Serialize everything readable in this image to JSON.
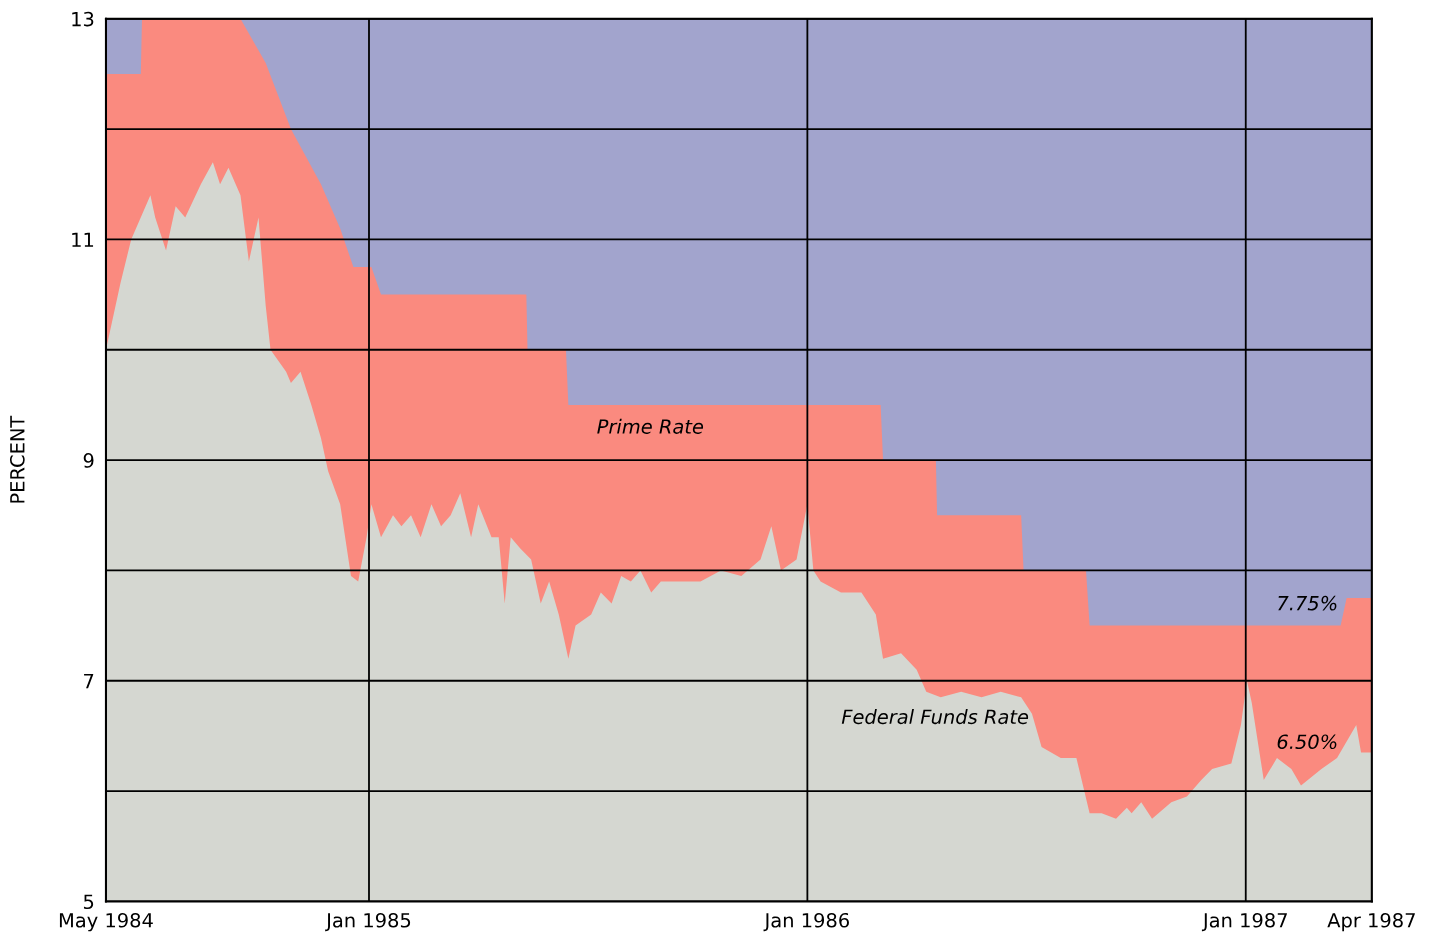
{
  "chart_data": {
    "type": "area",
    "ylabel": "PERCENT",
    "xlim": [
      "1984-05-27",
      "1987-04-16"
    ],
    "xticks": [
      {
        "value": "1984-05-27",
        "label": "May 1984"
      },
      {
        "value": "1985-01-01",
        "label": "Jan 1985"
      },
      {
        "value": "1986-01-01",
        "label": "Jan 1986"
      },
      {
        "value": "1987-01-01",
        "label": "Jan 1987"
      },
      {
        "value": "1987-04-16",
        "label": "Apr 1987"
      }
    ],
    "ylim": [
      5,
      13
    ],
    "yticks": [
      5,
      {
        "value": 6,
        "label": null
      },
      7,
      {
        "value": 8,
        "label": null
      },
      9,
      {
        "value": 10,
        "label": null
      },
      11,
      {
        "value": 12,
        "label": null
      },
      13
    ],
    "grid": true,
    "series": [
      {
        "name": "Prime Rate",
        "color": "#fa8a7f",
        "x": [
          "1984-05-27",
          "1984-06-25",
          "1984-06-26",
          "1984-09-16",
          "1984-10-07",
          "1984-10-28",
          "1984-11-22",
          "1984-12-08",
          "1984-12-19",
          "1985-01-03",
          "1985-01-11",
          "1985-05-12",
          "1985-05-13",
          "1985-06-14",
          "1985-06-16",
          "1986-03-03",
          "1986-03-05",
          "1986-04-18",
          "1986-04-19",
          "1986-06-28",
          "1986-06-30",
          "1986-08-21",
          "1986-08-24",
          "1987-03-21",
          "1987-03-26",
          "1987-04-16"
        ],
        "values": [
          12.5,
          12.5,
          13.0,
          13.0,
          12.6,
          12.0,
          11.5,
          11.1,
          10.75,
          10.75,
          10.5,
          10.5,
          10.0,
          10.0,
          9.5,
          9.5,
          9.0,
          9.0,
          8.5,
          8.5,
          8.0,
          8.0,
          7.5,
          7.5,
          7.75,
          7.75
        ]
      },
      {
        "name": "Federal Funds Rate",
        "color": "#d5d7d1",
        "x": [
          "1984-05-27",
          "1984-06-08",
          "1984-06-17",
          "1984-07-03",
          "1984-07-07",
          "1984-07-16",
          "1984-07-24",
          "1984-08-01",
          "1984-08-14",
          "1984-08-24",
          "1984-08-30",
          "1984-09-06",
          "1984-09-16",
          "1984-09-23",
          "1984-10-01",
          "1984-10-07",
          "1984-10-11",
          "1984-10-24",
          "1984-10-28",
          "1984-11-05",
          "1984-11-14",
          "1984-11-22",
          "1984-11-28",
          "1984-12-08",
          "1984-12-17",
          "1984-12-23",
          "1984-12-30",
          "1985-01-03",
          "1985-01-11",
          "1985-01-21",
          "1985-01-28",
          "1985-02-05",
          "1985-02-13",
          "1985-02-22",
          "1985-03-02",
          "1985-03-10",
          "1985-03-18",
          "1985-03-27",
          "1985-04-02",
          "1985-04-13",
          "1985-04-19",
          "1985-04-24",
          "1985-04-29",
          "1985-05-07",
          "1985-05-16",
          "1985-05-24",
          "1985-05-31",
          "1985-06-08",
          "1985-06-16",
          "1985-06-22",
          "1985-07-05",
          "1985-07-13",
          "1985-07-22",
          "1985-07-30",
          "1985-08-07",
          "1985-08-15",
          "1985-08-24",
          "1985-09-01",
          "1985-09-18",
          "1985-10-04",
          "1985-10-21",
          "1985-11-07",
          "1985-11-23",
          "1985-12-02",
          "1985-12-10",
          "1985-12-23",
          "1986-01-01",
          "1986-01-06",
          "1986-01-12",
          "1986-01-29",
          "1986-02-15",
          "1986-02-27",
          "1986-03-05",
          "1986-03-20",
          "1986-04-02",
          "1986-04-10",
          "1986-04-22",
          "1986-05-09",
          "1986-05-26",
          "1986-06-11",
          "1986-06-28",
          "1986-07-07",
          "1986-07-15",
          "1986-07-31",
          "1986-08-13",
          "1986-08-24",
          "1986-09-03",
          "1986-09-15",
          "1986-09-24",
          "1986-09-28",
          "1986-10-06",
          "1986-10-15",
          "1986-10-31",
          "1986-11-13",
          "1986-11-25",
          "1986-12-04",
          "1986-12-20",
          "1986-12-28",
          "1987-01-02",
          "1987-01-06",
          "1987-01-16",
          "1987-01-27",
          "1987-02-08",
          "1987-02-16",
          "1987-03-05",
          "1987-03-18",
          "1987-04-03",
          "1987-04-07",
          "1987-04-16"
        ],
        "values": [
          10.0,
          10.6,
          11.0,
          11.4,
          11.2,
          10.9,
          11.3,
          11.2,
          11.5,
          11.7,
          11.5,
          11.65,
          11.4,
          10.8,
          11.2,
          10.4,
          10.0,
          9.8,
          9.7,
          9.8,
          9.5,
          9.2,
          8.9,
          8.6,
          7.95,
          7.9,
          8.3,
          8.6,
          8.3,
          8.5,
          8.4,
          8.5,
          8.3,
          8.6,
          8.4,
          8.5,
          8.7,
          8.3,
          8.6,
          8.3,
          8.3,
          7.7,
          8.3,
          8.2,
          8.1,
          7.7,
          7.9,
          7.6,
          7.2,
          7.5,
          7.6,
          7.8,
          7.7,
          7.95,
          7.9,
          8.0,
          7.8,
          7.9,
          7.9,
          7.9,
          8.0,
          7.95,
          8.1,
          8.4,
          8.0,
          8.1,
          8.6,
          8.0,
          7.9,
          7.8,
          7.8,
          7.6,
          7.2,
          7.25,
          7.1,
          6.9,
          6.85,
          6.9,
          6.85,
          6.9,
          6.85,
          6.7,
          6.4,
          6.3,
          6.3,
          5.8,
          5.8,
          5.75,
          5.85,
          5.8,
          5.9,
          5.75,
          5.9,
          5.95,
          6.1,
          6.2,
          6.25,
          6.6,
          7.0,
          6.8,
          6.1,
          6.3,
          6.2,
          6.05,
          6.2,
          6.3,
          6.6,
          6.35,
          6.35
        ]
      }
    ],
    "annotations": [
      "7.75%",
      "6.50%"
    ]
  }
}
